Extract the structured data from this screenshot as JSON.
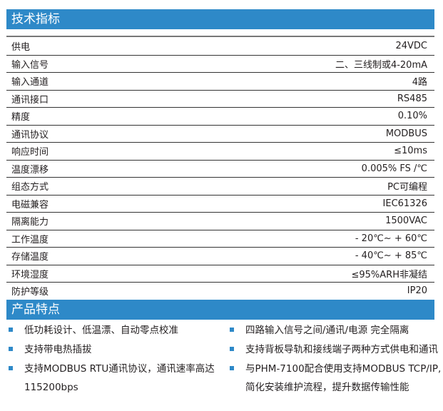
{
  "spec_title": "技术指标",
  "specs": [
    {
      "label": "供电",
      "value": "24VDC"
    },
    {
      "label": "输入信号",
      "value": "二、三线制或4-20mA"
    },
    {
      "label": "输入通道",
      "value": "4路"
    },
    {
      "label": "通讯接口",
      "value": "RS485"
    },
    {
      "label": "精度",
      "value": "0.10%"
    },
    {
      "label": "通讯协议",
      "value": "MODBUS"
    },
    {
      "label": "响应时间",
      "value": "≤10ms"
    },
    {
      "label": "温度漂移",
      "value": "0.005% FS /℃"
    },
    {
      "label": "组态方式",
      "value": "PC可编程"
    },
    {
      "label": "电磁兼容",
      "value": "IEC61326"
    },
    {
      "label": "隔离能力",
      "value": "1500VAC"
    },
    {
      "label": "工作温度",
      "value": "- 20℃~ + 60℃"
    },
    {
      "label": "存储温度",
      "value": "- 40℃~ + 85℃"
    },
    {
      "label": "环境湿度",
      "value": "≤95%ARH非凝结"
    },
    {
      "label": "防护等级",
      "value": "IP20"
    }
  ],
  "features_title": "产品特点",
  "features_left": [
    "低功耗设计、低温漂、自动零点校准",
    "支持带电热插拔",
    "支持MODBUS RTU通讯协议，通讯速率高达115200bps"
  ],
  "features_right": [
    "四路输入信号之间/通讯/电源 完全隔离",
    "支持背板导轨和接线端子两种方式供电和通讯",
    "与PHM-7100配合使用支持MODBUS TCP/IP,简化安装维护流程，提升数据传输性能"
  ],
  "accent": "#2e89c8"
}
